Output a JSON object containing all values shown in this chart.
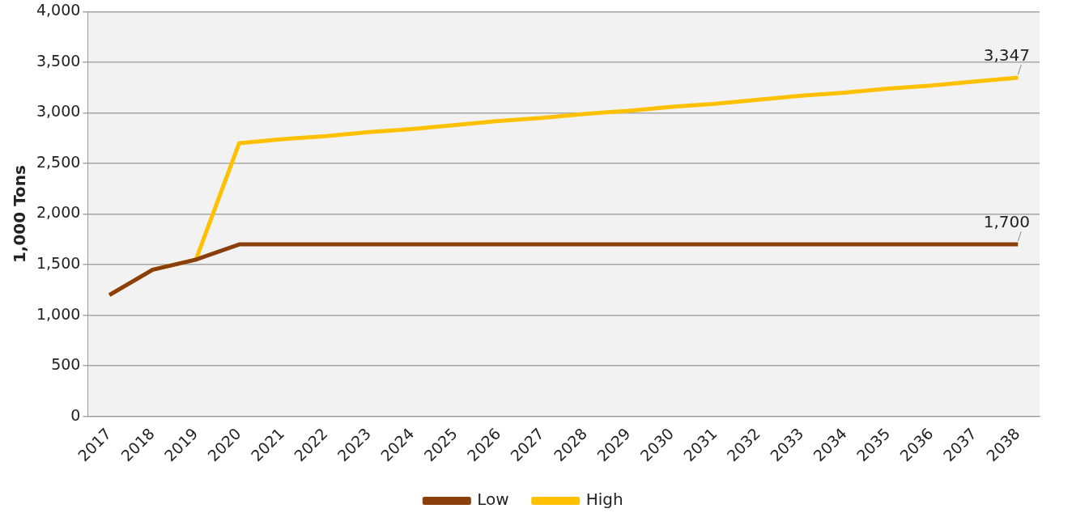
{
  "chart_data": {
    "type": "line",
    "ylabel": "1,000 Tons",
    "categories": [
      "2017",
      "2018",
      "2019",
      "2020",
      "2021",
      "2022",
      "2023",
      "2024",
      "2025",
      "2026",
      "2027",
      "2028",
      "2029",
      "2030",
      "2031",
      "2032",
      "2033",
      "2034",
      "2035",
      "2036",
      "2037",
      "2038"
    ],
    "series": [
      {
        "name": "Low",
        "color": "#8b3f0c",
        "values": [
          1200,
          1450,
          1550,
          1700,
          1700,
          1700,
          1700,
          1700,
          1700,
          1700,
          1700,
          1700,
          1700,
          1700,
          1700,
          1700,
          1700,
          1700,
          1700,
          1700,
          1700,
          1700
        ],
        "value_labels": [
          null,
          null,
          null,
          null,
          null,
          null,
          null,
          null,
          null,
          null,
          null,
          null,
          null,
          null,
          null,
          null,
          null,
          null,
          null,
          null,
          null,
          "1,700"
        ]
      },
      {
        "name": "High",
        "color": "#ffc000",
        "values": [
          1200,
          1450,
          1550,
          2700,
          2740,
          2770,
          2810,
          2840,
          2880,
          2920,
          2950,
          2990,
          3020,
          3060,
          3090,
          3130,
          3170,
          3200,
          3240,
          3270,
          3310,
          3347
        ],
        "value_labels": [
          null,
          null,
          null,
          null,
          null,
          null,
          null,
          null,
          null,
          null,
          null,
          null,
          null,
          null,
          null,
          null,
          null,
          null,
          null,
          null,
          null,
          "3,347"
        ]
      }
    ],
    "ylim": [
      0,
      4000
    ],
    "yticks": [
      0,
      500,
      {
        "value": 1000,
        "label": "1,000"
      },
      {
        "value": 1500,
        "label": "1,500"
      },
      {
        "value": 2000,
        "label": "2,000"
      },
      {
        "value": 2500,
        "label": "2,500"
      },
      {
        "value": 3000,
        "label": "3,000"
      },
      {
        "value": 3500,
        "label": "3,500"
      },
      {
        "value": 4000,
        "label": "4,000"
      }
    ],
    "grid": "y",
    "legend": "bottom",
    "marker": "none",
    "line_style": "solid"
  }
}
